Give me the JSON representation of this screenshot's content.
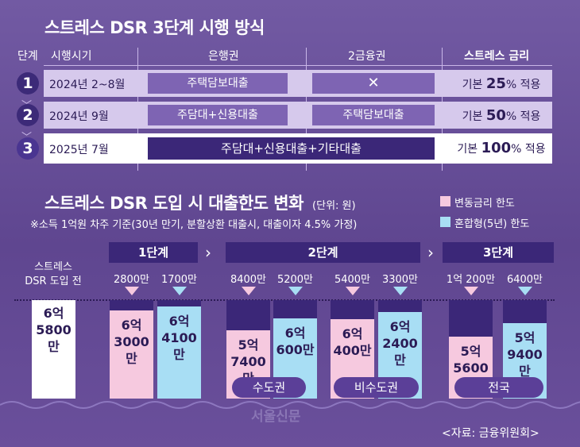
{
  "top": {
    "title": "스트레스 DSR 3단계 시행 방식",
    "headers": {
      "stage": "단계",
      "period": "시행시기",
      "bank": "은행권",
      "second": "2금융권",
      "rate": "스트레스 금리"
    },
    "rows": [
      {
        "num": "1",
        "period": "2024년 2~8월",
        "bank": "주택담보대출",
        "second": "✕",
        "rate_pre": "기본 ",
        "rate_val": "25",
        "rate_post": "% 적용"
      },
      {
        "num": "2",
        "period": "2024년 9월",
        "bank": "주담대+신용대출",
        "second": "주택담보대출",
        "rate_pre": "기본 ",
        "rate_val": "50",
        "rate_post": "% 적용"
      },
      {
        "num": "3",
        "period": "2025년 7월",
        "bank": "주담대+신용대출+기타대출",
        "rate_pre": "기본 ",
        "rate_val": "100",
        "rate_post": "% 적용"
      }
    ]
  },
  "bottom": {
    "title": "스트레스 DSR 도입 시 대출한도 변화",
    "unit": "(단위: 원)",
    "note": "※소득 1억원 차주 기준(30년 만기, 분할상환 대출시, 대출이자 4.5% 가정)",
    "legend": [
      {
        "label": "변동금리 한도",
        "color": "#f6c9df"
      },
      {
        "label": "혼합형(5년) 한도",
        "color": "#a8def4"
      }
    ],
    "before_label": "스트레스\nDSR 도입 전",
    "before_value": "6억\n5800만",
    "stages": [
      "1단계",
      "2단계",
      "3단계"
    ],
    "regions": [
      "수도권",
      "비수도권",
      "전국"
    ],
    "bars": [
      {
        "type": "variable",
        "decrease": "2800만",
        "value": "6억\n3000만"
      },
      {
        "type": "mixed",
        "decrease": "1700만",
        "value": "6억\n4100만"
      },
      {
        "type": "variable",
        "decrease": "8400만",
        "value": "5억\n7400만"
      },
      {
        "type": "mixed",
        "decrease": "5200만",
        "value": "6억\n600만"
      },
      {
        "type": "variable",
        "decrease": "5400만",
        "value": "6억\n400만"
      },
      {
        "type": "mixed",
        "decrease": "3300만",
        "value": "6억\n2400만"
      },
      {
        "type": "variable",
        "decrease": "1억 200만",
        "value": "5억\n5600만"
      },
      {
        "type": "mixed",
        "decrease": "6400만",
        "value": "5억\n9400만"
      }
    ],
    "source": "<자료: 금융위원회>",
    "watermark": "서울신문"
  },
  "colors": {
    "pink": "#f6c9df",
    "blue": "#a8def4",
    "dark": "#3b2778",
    "bg": "#6a4f9b"
  }
}
